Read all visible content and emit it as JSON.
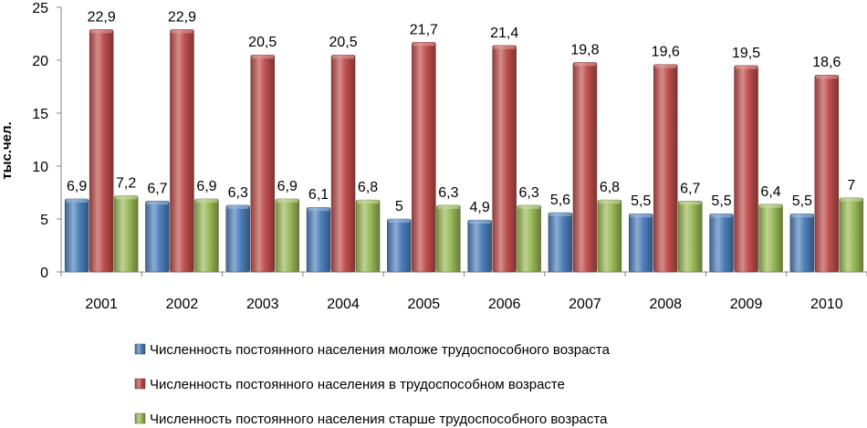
{
  "chart_data": {
    "type": "bar",
    "categories": [
      "2001",
      "2002",
      "2003",
      "2004",
      "2005",
      "2006",
      "2007",
      "2008",
      "2009",
      "2010"
    ],
    "ylabel": "тыс.чел.",
    "ylim": [
      0,
      25
    ],
    "yticks": [
      0,
      5,
      10,
      15,
      20,
      25
    ],
    "grid": false,
    "legend_position": "bottom",
    "series": [
      {
        "name": "Численность постоянного населения моложе трудоспособного возраста",
        "color": "#4F81BD",
        "values": [
          6.9,
          6.7,
          6.3,
          6.1,
          5,
          4.9,
          5.6,
          5.5,
          5.5,
          5.5
        ],
        "labels": [
          "6,9",
          "6,7",
          "6,3",
          "6,1",
          "5",
          "4,9",
          "5,6",
          "5,5",
          "5,5",
          "5,5"
        ]
      },
      {
        "name": "Численность постоянного населения в трудоспособном возрасте",
        "color": "#C0504D",
        "values": [
          22.9,
          22.9,
          20.5,
          20.5,
          21.7,
          21.4,
          19.8,
          19.6,
          19.5,
          18.6
        ],
        "labels": [
          "22,9",
          "22,9",
          "20,5",
          "20,5",
          "21,7",
          "21,4",
          "19,8",
          "19,6",
          "19,5",
          "18,6"
        ]
      },
      {
        "name": "Численность постоянного населения старше трудоспособного возраста",
        "color": "#9BBB59",
        "values": [
          7.2,
          6.9,
          6.9,
          6.8,
          6.3,
          6.3,
          6.8,
          6.7,
          6.4,
          7
        ],
        "labels": [
          "7,2",
          "6,9",
          "6,9",
          "6,8",
          "6,3",
          "6,3",
          "6,8",
          "6,7",
          "6,4",
          "7"
        ]
      }
    ]
  }
}
